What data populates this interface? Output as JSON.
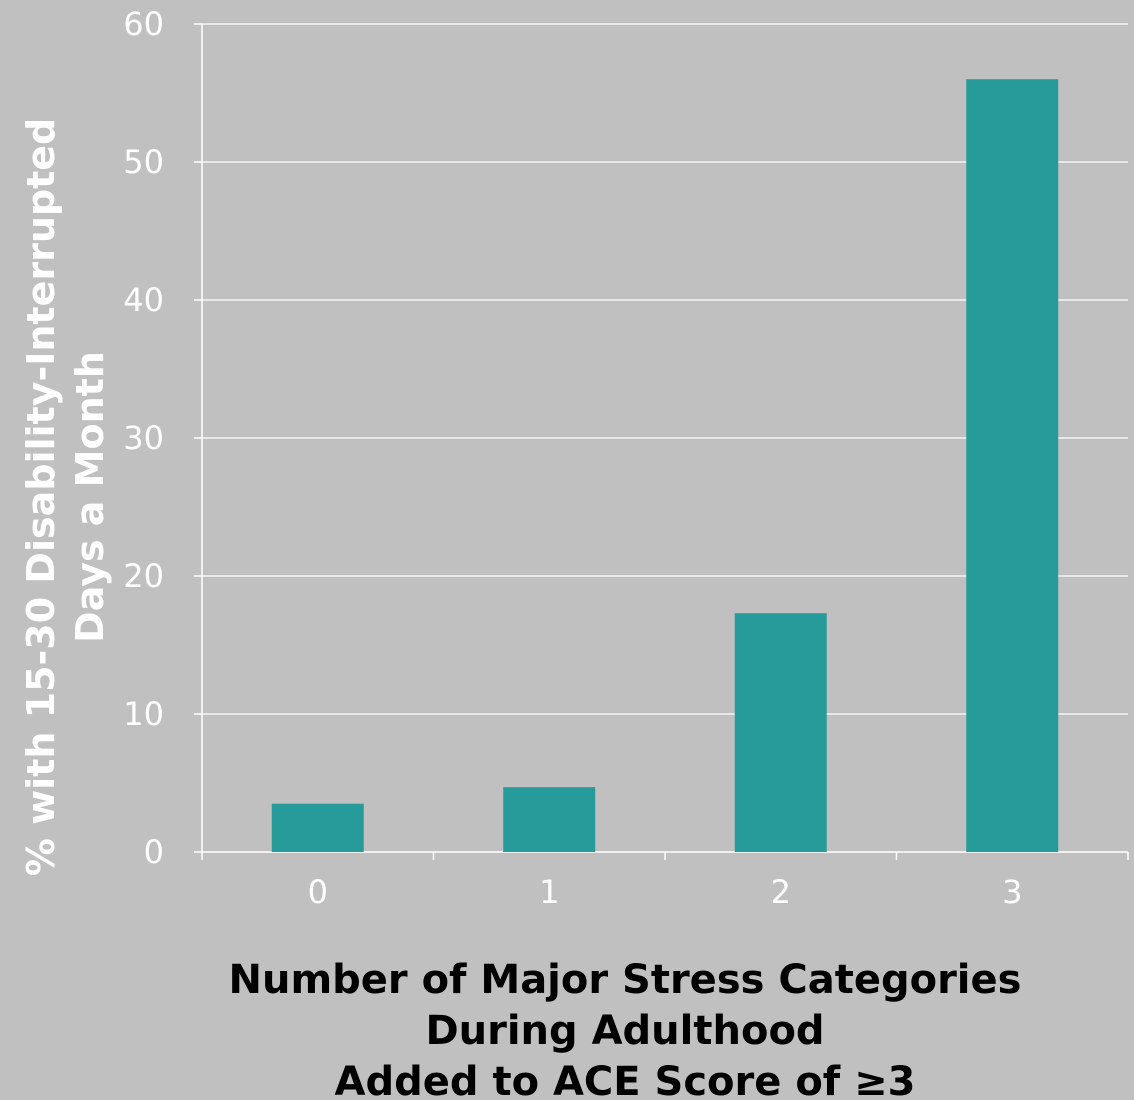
{
  "chart_data": {
    "type": "bar",
    "categories": [
      "0",
      "1",
      "2",
      "3"
    ],
    "values": [
      3.5,
      4.7,
      17.3,
      56.0
    ],
    "ylim": [
      0,
      60
    ],
    "yticks": [
      0,
      10,
      20,
      30,
      40,
      50,
      60
    ],
    "ylabel_lines": [
      "% with 15-30 Disability-Interrupted",
      "Days a Month"
    ],
    "xlabel_lines": [
      "Number of Major Stress Categories",
      "During Adulthood",
      "Added to ACE Score of ≥3"
    ],
    "grid": true,
    "bar_color": "#269b99",
    "background_color": "#c0c0c0",
    "gridline_color": "#ffffff"
  }
}
